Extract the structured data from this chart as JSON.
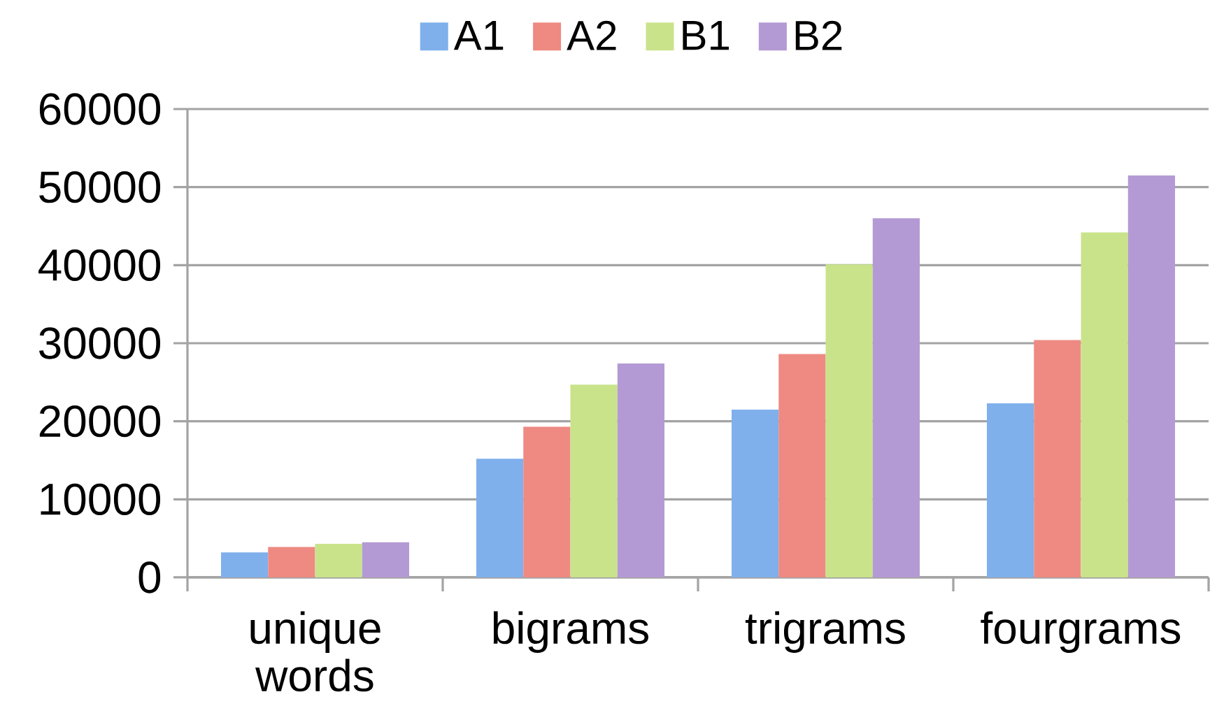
{
  "chart_data": {
    "type": "bar",
    "categories": [
      "unique words",
      "bigrams",
      "trigrams",
      "fourgrams"
    ],
    "series": [
      {
        "name": "A1",
        "color": "#7fb0ec",
        "values": [
          3200,
          15200,
          21500,
          22300
        ]
      },
      {
        "name": "A2",
        "color": "#ee8a82",
        "values": [
          3900,
          19300,
          28600,
          30400
        ]
      },
      {
        "name": "B1",
        "color": "#c9e38a",
        "values": [
          4300,
          24700,
          40100,
          44200
        ]
      },
      {
        "name": "B2",
        "color": "#b49ad4",
        "values": [
          4500,
          27400,
          46000,
          51500
        ]
      }
    ],
    "ylim": [
      0,
      60000
    ],
    "yticks": [
      0,
      10000,
      20000,
      30000,
      40000,
      50000,
      60000
    ],
    "grid": "y",
    "legend": "top"
  }
}
